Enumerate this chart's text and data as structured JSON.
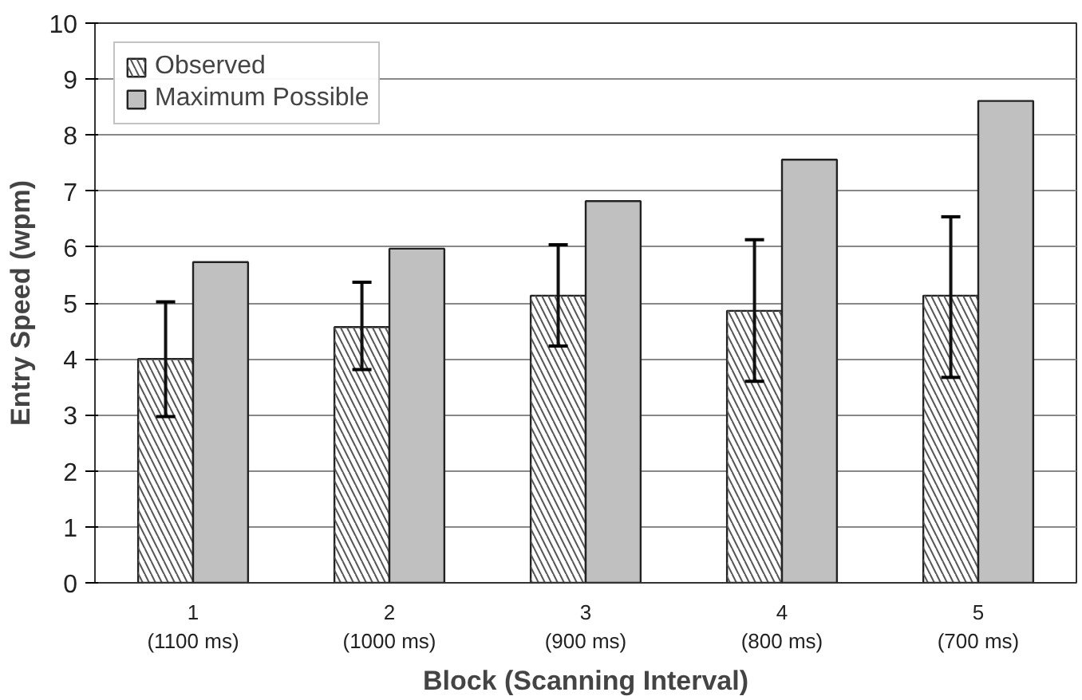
{
  "chart_data": {
    "type": "bar",
    "xlabel": "Block (Scanning Interval)",
    "ylabel": "Entry Speed (wpm)",
    "categories": [
      "1\n(1100 ms)",
      "2\n(1000 ms)",
      "3\n(900 ms)",
      "4\n(800 ms)",
      "5\n(700 ms)"
    ],
    "series": [
      {
        "name": "Observed",
        "color": "#ffffff",
        "values": [
          4.0,
          4.57,
          5.13,
          4.86,
          5.13
        ],
        "errors": [
          [
            2.97,
            5.02
          ],
          [
            3.81,
            5.37
          ],
          [
            4.23,
            6.04
          ],
          [
            3.6,
            6.13
          ],
          [
            3.67,
            6.54
          ]
        ]
      },
      {
        "name": "Maximum Possible",
        "color": "#c0c0c0",
        "values": [
          5.73,
          5.97,
          6.82,
          7.56,
          8.61
        ]
      }
    ],
    "ylim": [
      0,
      10
    ],
    "yticks": [
      0,
      1,
      2,
      3,
      4,
      5,
      6,
      7,
      8,
      9,
      10
    ],
    "grid": "y",
    "legend": "top left"
  }
}
